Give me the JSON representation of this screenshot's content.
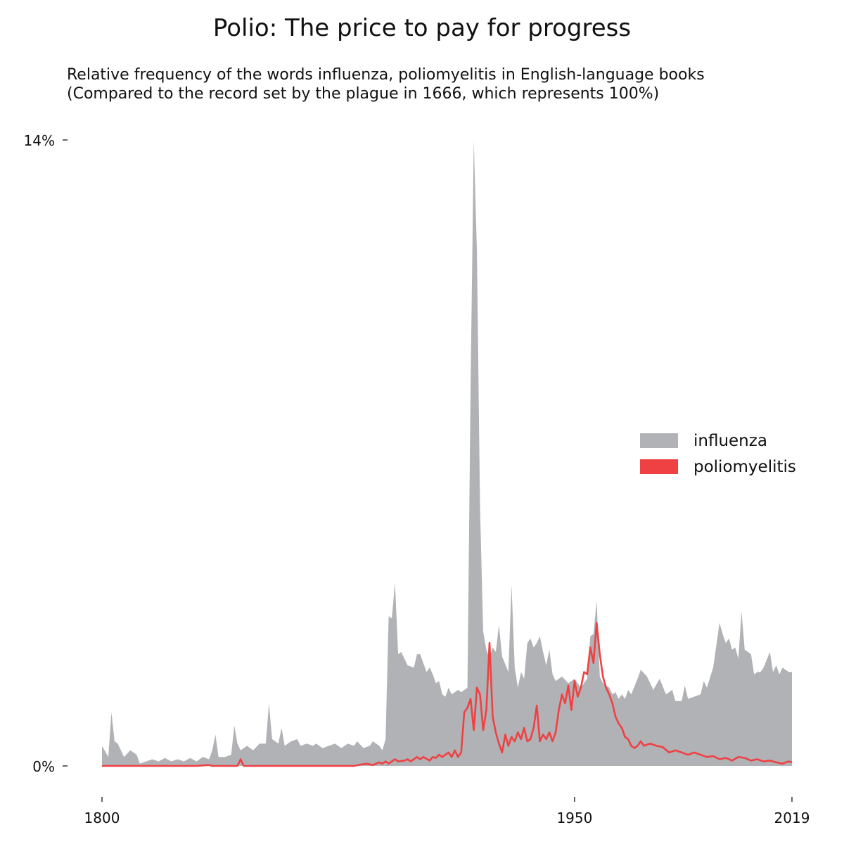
{
  "chart_data": {
    "type": "area",
    "title": "Polio: The price to pay for progress",
    "subtitle_lines": [
      "Relative frequency of the words influenza, poliomyelitis in English-language books",
      "(Compared to the record set by the plague in 1666, which represents 100%)"
    ],
    "xlabel": "",
    "ylabel": "",
    "xlim": [
      1800,
      2019
    ],
    "ylim": [
      0,
      14
    ],
    "x_ticks": [
      1800,
      1950,
      2019
    ],
    "y_ticks": [
      0,
      14
    ],
    "y_tick_labels": [
      "0%",
      "14%"
    ],
    "grid": false,
    "legend_position": "right",
    "series": [
      {
        "name": "influenza",
        "color": "#b1b2b5",
        "style": "area",
        "points": [
          [
            1800,
            0.45
          ],
          [
            1802,
            0.2
          ],
          [
            1803,
            1.2
          ],
          [
            1804,
            0.55
          ],
          [
            1805,
            0.5
          ],
          [
            1806,
            0.35
          ],
          [
            1807,
            0.2
          ],
          [
            1809,
            0.35
          ],
          [
            1811,
            0.25
          ],
          [
            1812,
            0.05
          ],
          [
            1814,
            0.1
          ],
          [
            1816,
            0.15
          ],
          [
            1818,
            0.1
          ],
          [
            1820,
            0.18
          ],
          [
            1822,
            0.1
          ],
          [
            1824,
            0.15
          ],
          [
            1826,
            0.1
          ],
          [
            1828,
            0.18
          ],
          [
            1830,
            0.1
          ],
          [
            1832,
            0.2
          ],
          [
            1834,
            0.15
          ],
          [
            1835,
            0.35
          ],
          [
            1836,
            0.7
          ],
          [
            1837,
            0.2
          ],
          [
            1839,
            0.2
          ],
          [
            1841,
            0.25
          ],
          [
            1842,
            0.9
          ],
          [
            1843,
            0.5
          ],
          [
            1844,
            0.35
          ],
          [
            1846,
            0.45
          ],
          [
            1848,
            0.35
          ],
          [
            1850,
            0.5
          ],
          [
            1852,
            0.5
          ],
          [
            1853,
            1.4
          ],
          [
            1854,
            0.6
          ],
          [
            1856,
            0.5
          ],
          [
            1857,
            0.85
          ],
          [
            1858,
            0.45
          ],
          [
            1860,
            0.55
          ],
          [
            1862,
            0.6
          ],
          [
            1863,
            0.45
          ],
          [
            1865,
            0.5
          ],
          [
            1867,
            0.45
          ],
          [
            1868,
            0.5
          ],
          [
            1870,
            0.4
          ],
          [
            1872,
            0.45
          ],
          [
            1874,
            0.5
          ],
          [
            1876,
            0.4
          ],
          [
            1878,
            0.5
          ],
          [
            1880,
            0.45
          ],
          [
            1881,
            0.55
          ],
          [
            1883,
            0.4
          ],
          [
            1885,
            0.45
          ],
          [
            1886,
            0.55
          ],
          [
            1888,
            0.45
          ],
          [
            1889,
            0.35
          ],
          [
            1890,
            0.6
          ],
          [
            1891,
            3.35
          ],
          [
            1892,
            3.3
          ],
          [
            1893,
            4.1
          ],
          [
            1894,
            2.5
          ],
          [
            1895,
            2.55
          ],
          [
            1897,
            2.25
          ],
          [
            1899,
            2.2
          ],
          [
            1900,
            2.5
          ],
          [
            1901,
            2.5
          ],
          [
            1903,
            2.1
          ],
          [
            1904,
            2.2
          ],
          [
            1905,
            2.05
          ],
          [
            1906,
            1.85
          ],
          [
            1907,
            1.9
          ],
          [
            1908,
            1.6
          ],
          [
            1909,
            1.55
          ],
          [
            1910,
            1.75
          ],
          [
            1911,
            1.6
          ],
          [
            1913,
            1.7
          ],
          [
            1914,
            1.65
          ],
          [
            1916,
            1.75
          ],
          [
            1917,
            8.5
          ],
          [
            1918,
            14.0
          ],
          [
            1919,
            11.5
          ],
          [
            1920,
            5.8
          ],
          [
            1921,
            3.0
          ],
          [
            1922,
            2.6
          ],
          [
            1923,
            2.4
          ],
          [
            1924,
            2.65
          ],
          [
            1925,
            2.55
          ],
          [
            1926,
            3.15
          ],
          [
            1927,
            2.45
          ],
          [
            1929,
            2.1
          ],
          [
            1930,
            4.05
          ],
          [
            1931,
            2.2
          ],
          [
            1932,
            1.75
          ],
          [
            1933,
            2.1
          ],
          [
            1934,
            1.95
          ],
          [
            1935,
            2.75
          ],
          [
            1936,
            2.85
          ],
          [
            1937,
            2.65
          ],
          [
            1938,
            2.75
          ],
          [
            1939,
            2.9
          ],
          [
            1940,
            2.55
          ],
          [
            1941,
            2.25
          ],
          [
            1942,
            2.6
          ],
          [
            1943,
            2.05
          ],
          [
            1944,
            1.9
          ],
          [
            1946,
            2.0
          ],
          [
            1948,
            1.85
          ],
          [
            1950,
            1.95
          ],
          [
            1952,
            1.75
          ],
          [
            1954,
            1.95
          ],
          [
            1955,
            2.9
          ],
          [
            1956,
            2.95
          ],
          [
            1957,
            3.7
          ],
          [
            1958,
            2.0
          ],
          [
            1959,
            1.85
          ],
          [
            1961,
            1.75
          ],
          [
            1962,
            1.6
          ],
          [
            1963,
            1.65
          ],
          [
            1964,
            1.5
          ],
          [
            1965,
            1.6
          ],
          [
            1966,
            1.5
          ],
          [
            1967,
            1.7
          ],
          [
            1968,
            1.6
          ],
          [
            1970,
            1.95
          ],
          [
            1971,
            2.15
          ],
          [
            1973,
            2.0
          ],
          [
            1975,
            1.7
          ],
          [
            1977,
            1.95
          ],
          [
            1979,
            1.6
          ],
          [
            1981,
            1.7
          ],
          [
            1982,
            1.45
          ],
          [
            1984,
            1.45
          ],
          [
            1985,
            1.8
          ],
          [
            1986,
            1.5
          ],
          [
            1988,
            1.55
          ],
          [
            1990,
            1.6
          ],
          [
            1991,
            1.9
          ],
          [
            1992,
            1.75
          ],
          [
            1994,
            2.2
          ],
          [
            1995,
            2.7
          ],
          [
            1996,
            3.2
          ],
          [
            1997,
            2.95
          ],
          [
            1998,
            2.75
          ],
          [
            1999,
            2.85
          ],
          [
            2000,
            2.6
          ],
          [
            2001,
            2.65
          ],
          [
            2002,
            2.4
          ],
          [
            2003,
            3.45
          ],
          [
            2004,
            2.6
          ],
          [
            2005,
            2.55
          ],
          [
            2006,
            2.5
          ],
          [
            2007,
            2.05
          ],
          [
            2008,
            2.1
          ],
          [
            2009,
            2.1
          ],
          [
            2010,
            2.2
          ],
          [
            2012,
            2.55
          ],
          [
            2013,
            2.1
          ],
          [
            2014,
            2.25
          ],
          [
            2015,
            2.05
          ],
          [
            2016,
            2.2
          ],
          [
            2017,
            2.15
          ],
          [
            2018,
            2.1
          ],
          [
            2019,
            2.1
          ]
        ]
      },
      {
        "name": "poliomyelitis",
        "color": "#ef4144",
        "style": "line",
        "points": [
          [
            1800,
            0.0
          ],
          [
            1830,
            0.0
          ],
          [
            1834,
            0.02
          ],
          [
            1835,
            0.0
          ],
          [
            1843,
            0.0
          ],
          [
            1844,
            0.15
          ],
          [
            1845,
            0.0
          ],
          [
            1880,
            0.0
          ],
          [
            1882,
            0.03
          ],
          [
            1884,
            0.05
          ],
          [
            1886,
            0.02
          ],
          [
            1888,
            0.08
          ],
          [
            1889,
            0.05
          ],
          [
            1890,
            0.1
          ],
          [
            1891,
            0.05
          ],
          [
            1892,
            0.1
          ],
          [
            1893,
            0.15
          ],
          [
            1894,
            0.1
          ],
          [
            1896,
            0.12
          ],
          [
            1897,
            0.15
          ],
          [
            1898,
            0.1
          ],
          [
            1900,
            0.2
          ],
          [
            1901,
            0.15
          ],
          [
            1902,
            0.2
          ],
          [
            1904,
            0.12
          ],
          [
            1905,
            0.2
          ],
          [
            1906,
            0.18
          ],
          [
            1907,
            0.25
          ],
          [
            1908,
            0.2
          ],
          [
            1909,
            0.25
          ],
          [
            1910,
            0.3
          ],
          [
            1911,
            0.2
          ],
          [
            1912,
            0.35
          ],
          [
            1913,
            0.2
          ],
          [
            1914,
            0.3
          ],
          [
            1915,
            1.2
          ],
          [
            1916,
            1.3
          ],
          [
            1917,
            1.5
          ],
          [
            1918,
            0.8
          ],
          [
            1919,
            1.75
          ],
          [
            1920,
            1.6
          ],
          [
            1921,
            0.8
          ],
          [
            1922,
            1.25
          ],
          [
            1923,
            2.75
          ],
          [
            1924,
            1.1
          ],
          [
            1925,
            0.75
          ],
          [
            1926,
            0.5
          ],
          [
            1927,
            0.3
          ],
          [
            1928,
            0.7
          ],
          [
            1929,
            0.45
          ],
          [
            1930,
            0.65
          ],
          [
            1931,
            0.55
          ],
          [
            1932,
            0.75
          ],
          [
            1933,
            0.6
          ],
          [
            1934,
            0.85
          ],
          [
            1935,
            0.55
          ],
          [
            1936,
            0.6
          ],
          [
            1937,
            0.85
          ],
          [
            1938,
            1.35
          ],
          [
            1939,
            0.55
          ],
          [
            1940,
            0.7
          ],
          [
            1941,
            0.6
          ],
          [
            1942,
            0.75
          ],
          [
            1943,
            0.55
          ],
          [
            1944,
            0.75
          ],
          [
            1945,
            1.25
          ],
          [
            1946,
            1.6
          ],
          [
            1947,
            1.4
          ],
          [
            1948,
            1.8
          ],
          [
            1949,
            1.25
          ],
          [
            1950,
            1.9
          ],
          [
            1951,
            1.55
          ],
          [
            1952,
            1.75
          ],
          [
            1953,
            2.1
          ],
          [
            1954,
            2.05
          ],
          [
            1955,
            2.65
          ],
          [
            1956,
            2.3
          ],
          [
            1957,
            3.2
          ],
          [
            1958,
            2.5
          ],
          [
            1959,
            2.0
          ],
          [
            1960,
            1.75
          ],
          [
            1961,
            1.6
          ],
          [
            1962,
            1.4
          ],
          [
            1963,
            1.1
          ],
          [
            1964,
            0.95
          ],
          [
            1965,
            0.85
          ],
          [
            1966,
            0.65
          ],
          [
            1967,
            0.6
          ],
          [
            1968,
            0.45
          ],
          [
            1969,
            0.4
          ],
          [
            1970,
            0.45
          ],
          [
            1971,
            0.55
          ],
          [
            1972,
            0.45
          ],
          [
            1974,
            0.5
          ],
          [
            1976,
            0.45
          ],
          [
            1978,
            0.42
          ],
          [
            1980,
            0.3
          ],
          [
            1982,
            0.35
          ],
          [
            1984,
            0.3
          ],
          [
            1986,
            0.25
          ],
          [
            1988,
            0.3
          ],
          [
            1990,
            0.25
          ],
          [
            1992,
            0.2
          ],
          [
            1994,
            0.22
          ],
          [
            1996,
            0.15
          ],
          [
            1998,
            0.18
          ],
          [
            2000,
            0.12
          ],
          [
            2002,
            0.2
          ],
          [
            2004,
            0.18
          ],
          [
            2006,
            0.12
          ],
          [
            2008,
            0.15
          ],
          [
            2010,
            0.1
          ],
          [
            2012,
            0.12
          ],
          [
            2014,
            0.08
          ],
          [
            2016,
            0.05
          ],
          [
            2017,
            0.08
          ],
          [
            2018,
            0.1
          ],
          [
            2019,
            0.08
          ]
        ]
      }
    ]
  }
}
